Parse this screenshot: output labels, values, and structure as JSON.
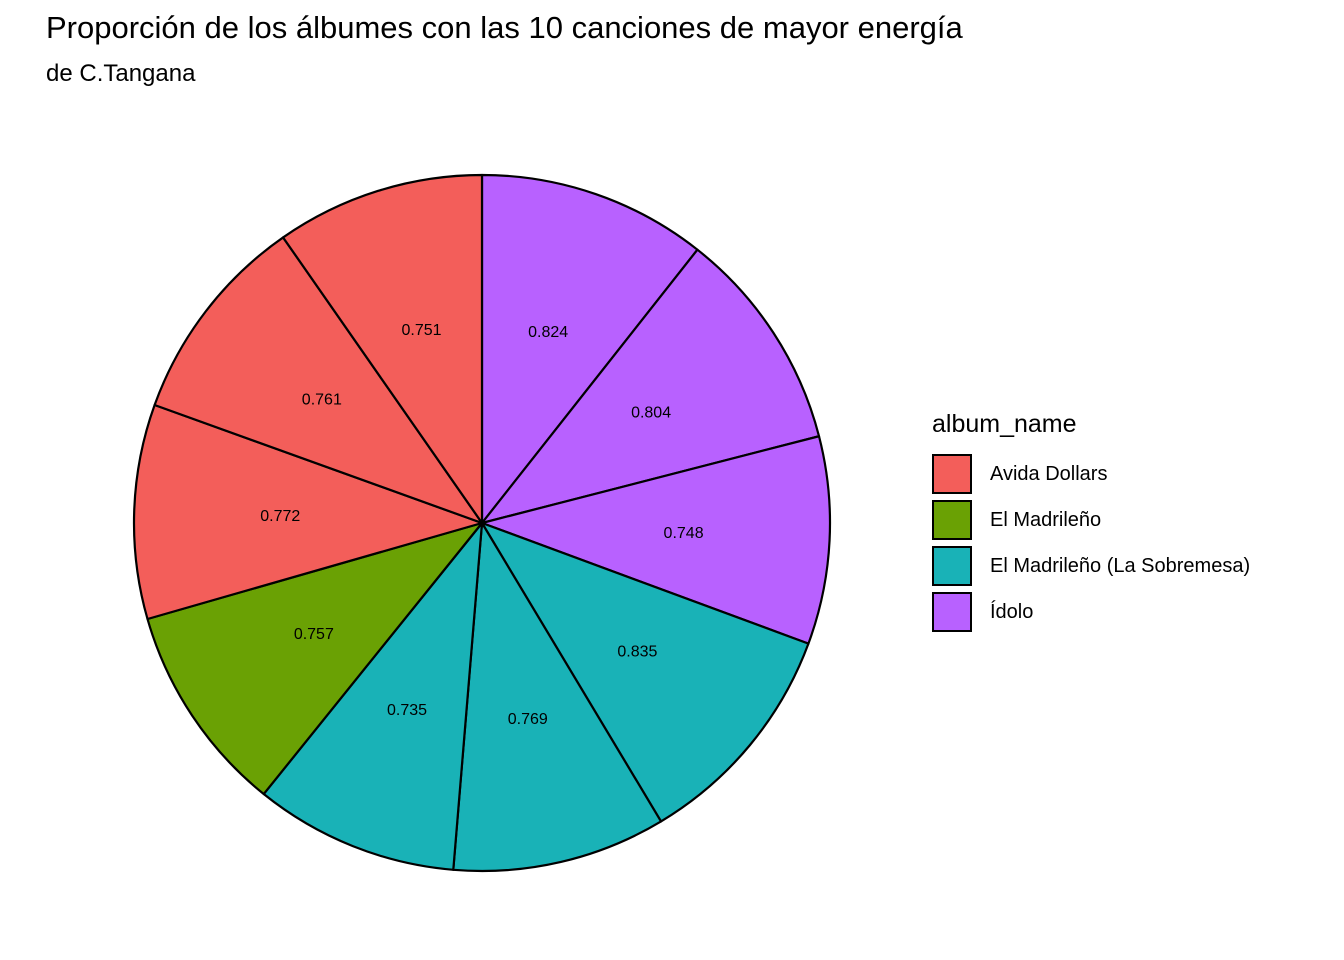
{
  "title": "Proporción de los álbumes con las 10 canciones de mayor energía",
  "subtitle": "de C.Tangana",
  "legend": {
    "title": "album_name",
    "items": [
      {
        "label": "Avida Dollars",
        "color": "#F35E5A"
      },
      {
        "label": "El Madrileño",
        "color": "#6AA104"
      },
      {
        "label": "El Madrileño (La Sobremesa)",
        "color": "#19B2B7"
      },
      {
        "label": "Ídolo",
        "color": "#B861FF"
      }
    ]
  },
  "chart_data": {
    "type": "pie",
    "title": "Proporción de los álbumes con las 10 canciones de mayor energía",
    "subtitle": "de C.Tangana",
    "legend_title": "album_name",
    "legend_position": "right",
    "slices": [
      {
        "album": "Ídolo",
        "value": 0.824,
        "label": "0.824"
      },
      {
        "album": "Ídolo",
        "value": 0.804,
        "label": "0.804"
      },
      {
        "album": "Ídolo",
        "value": 0.748,
        "label": "0.748"
      },
      {
        "album": "El Madrileño (La Sobremesa)",
        "value": 0.835,
        "label": "0.835"
      },
      {
        "album": "El Madrileño (La Sobremesa)",
        "value": 0.769,
        "label": "0.769"
      },
      {
        "album": "El Madrileño (La Sobremesa)",
        "value": 0.735,
        "label": "0.735"
      },
      {
        "album": "El Madrileño",
        "value": 0.757,
        "label": "0.757"
      },
      {
        "album": "Avida Dollars",
        "value": 0.772,
        "label": "0.772"
      },
      {
        "album": "Avida Dollars",
        "value": 0.761,
        "label": "0.761"
      },
      {
        "album": "Avida Dollars",
        "value": 0.751,
        "label": "0.751"
      }
    ]
  }
}
